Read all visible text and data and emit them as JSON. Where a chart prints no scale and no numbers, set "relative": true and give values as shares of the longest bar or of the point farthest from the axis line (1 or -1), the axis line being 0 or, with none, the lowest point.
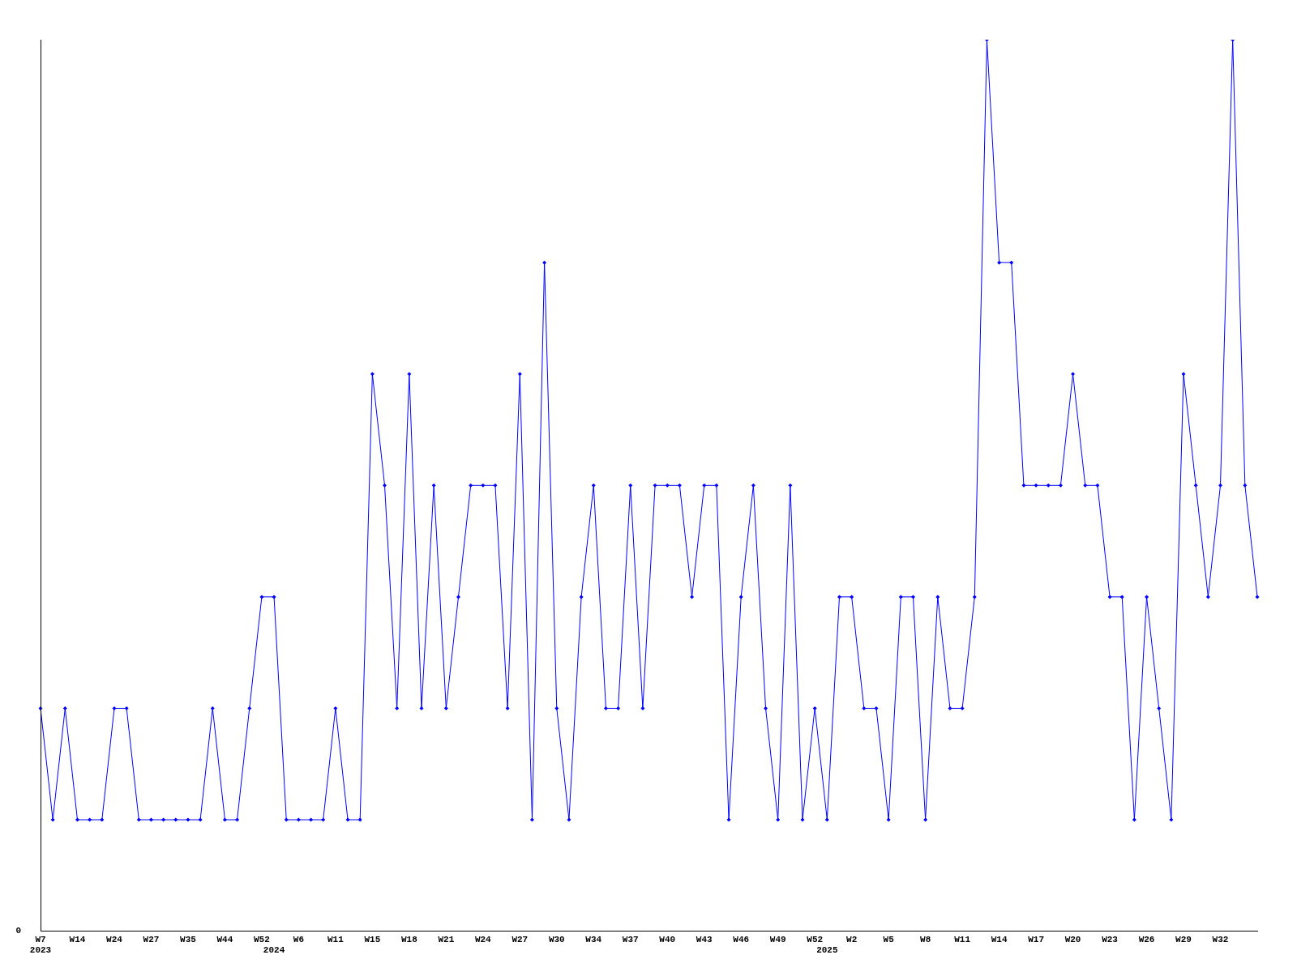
{
  "chart_data": {
    "type": "line",
    "relative": true,
    "color": "#0000ff",
    "marker": "diamond",
    "grid": false,
    "legend": false,
    "categories": [
      "W7\n2023",
      null,
      null,
      "W14",
      null,
      null,
      "W24",
      null,
      null,
      "W27",
      null,
      null,
      "W35",
      null,
      null,
      "W44",
      null,
      null,
      "W52",
      "\n2024",
      null,
      "W6",
      null,
      null,
      "W11",
      null,
      null,
      "W15",
      null,
      null,
      "W18",
      null,
      null,
      "W21",
      null,
      null,
      "W24",
      null,
      null,
      "W27",
      null,
      null,
      "W30",
      null,
      null,
      "W34",
      null,
      null,
      "W37",
      null,
      null,
      "W40",
      null,
      null,
      "W43",
      null,
      null,
      "W46",
      null,
      null,
      "W49",
      null,
      null,
      "W52",
      "\n2025",
      null,
      "W2",
      null,
      null,
      "W5",
      null,
      null,
      "W8",
      null,
      null,
      "W11",
      null,
      null,
      "W14",
      null,
      null,
      "W17",
      null,
      null,
      "W20",
      null,
      null,
      "W23",
      null,
      null,
      "W26",
      null,
      null,
      "W29",
      null,
      null,
      "W32",
      null,
      null,
      null
    ],
    "values": [
      0.25,
      0.125,
      0.25,
      0.125,
      0.125,
      0.125,
      0.25,
      0.25,
      0.125,
      0.125,
      0.125,
      0.125,
      0.125,
      0.125,
      0.25,
      0.125,
      0.125,
      0.25,
      0.375,
      0.375,
      0.125,
      0.125,
      0.125,
      0.125,
      0.25,
      0.125,
      0.125,
      0.625,
      0.5,
      0.25,
      0.625,
      0.25,
      0.5,
      0.25,
      0.375,
      0.5,
      0.5,
      0.5,
      0.25,
      0.625,
      0.125,
      0.75,
      0.25,
      0.125,
      0.375,
      0.5,
      0.25,
      0.25,
      0.5,
      0.25,
      0.5,
      0.5,
      0.5,
      0.375,
      0.5,
      0.5,
      0.125,
      0.375,
      0.5,
      0.25,
      0.125,
      0.5,
      0.125,
      0.25,
      0.125,
      0.375,
      0.375,
      0.25,
      0.25,
      0.125,
      0.375,
      0.375,
      0.125,
      0.375,
      0.25,
      0.25,
      0.375,
      1,
      0.75,
      0.75,
      0.5,
      0.5,
      0.5,
      0.5,
      0.625,
      0.5,
      0.5,
      0.375,
      0.375,
      0.125,
      0.375,
      0.25,
      0.125,
      0.625,
      0.5,
      0.375,
      0.5,
      1,
      0.5,
      0.375
    ],
    "annotations": [
      "0"
    ]
  }
}
